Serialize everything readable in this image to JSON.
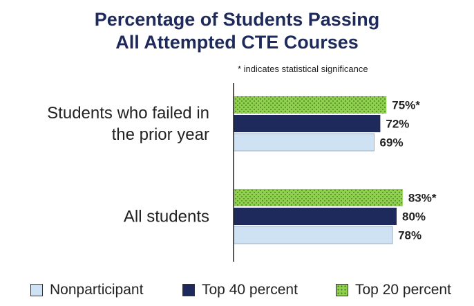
{
  "chart_data": {
    "type": "bar",
    "orientation": "horizontal",
    "title": "Percentage of Students Passing All Attempted CTE Courses",
    "title_lines": [
      "Percentage of Students Passing",
      "All Attempted CTE Courses"
    ],
    "note": "* indicates statistical significance",
    "categories": [
      {
        "lines": [
          "Students who failed in",
          "the prior year"
        ]
      },
      {
        "lines": [
          "All students"
        ]
      }
    ],
    "series": [
      {
        "name": "Top 20 percent",
        "values": [
          75,
          83
        ],
        "labels": [
          "75%*",
          "83%*"
        ],
        "color": "#8fd14f",
        "pattern": "dots"
      },
      {
        "name": "Top 40 percent",
        "values": [
          72,
          80
        ],
        "labels": [
          "72%",
          "80%"
        ],
        "color": "#1f2a5c"
      },
      {
        "name": "Nonparticipant",
        "values": [
          69,
          78
        ],
        "labels": [
          "69%",
          "78%"
        ],
        "color": "#cfe2f3"
      }
    ],
    "xlim": [
      0,
      100
    ],
    "grid": false,
    "legend": {
      "position": "bottom",
      "items": [
        {
          "label": "Nonparticipant",
          "color": "#cfe2f3"
        },
        {
          "label": "Top 40 percent",
          "color": "#1f2a5c"
        },
        {
          "label": "Top 20 percent",
          "color": "#8fd14f",
          "pattern": "dots"
        }
      ]
    }
  }
}
